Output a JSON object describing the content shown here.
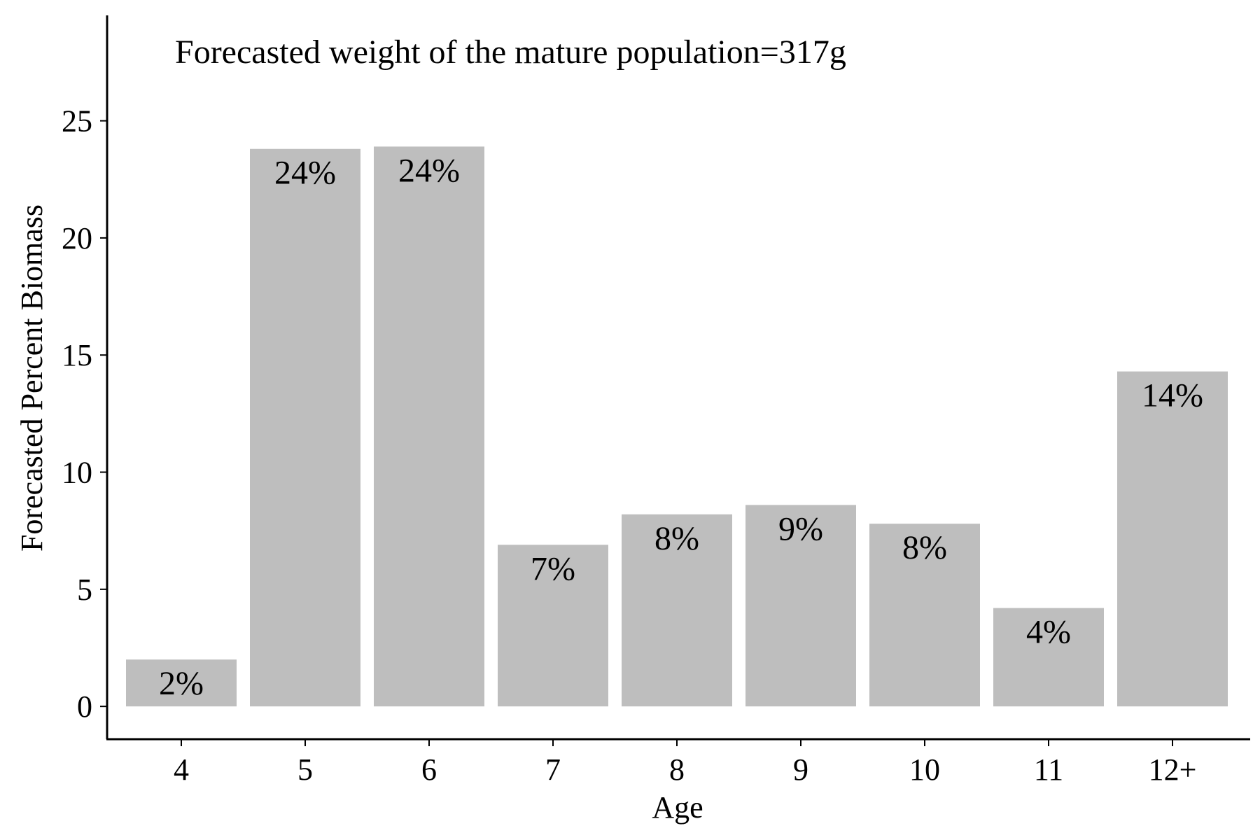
{
  "chart_data": {
    "type": "bar",
    "annotation": "Forecasted weight of the mature population=317g",
    "xlabel": "Age",
    "ylabel": "Forecasted Percent Biomass",
    "categories": [
      "4",
      "5",
      "6",
      "7",
      "8",
      "9",
      "10",
      "11",
      "12+"
    ],
    "values": [
      2.0,
      23.8,
      23.9,
      6.9,
      8.2,
      8.6,
      7.8,
      4.2,
      14.3
    ],
    "data_labels": [
      "2%",
      "24%",
      "24%",
      "7%",
      "8%",
      "9%",
      "8%",
      "4%",
      "14%"
    ],
    "ylim": [
      -1.4,
      29.5
    ],
    "yticks": [
      0,
      5,
      10,
      15,
      20,
      25
    ],
    "grid": false,
    "bar_color": "#bebebe",
    "axis_color": "#000000"
  }
}
